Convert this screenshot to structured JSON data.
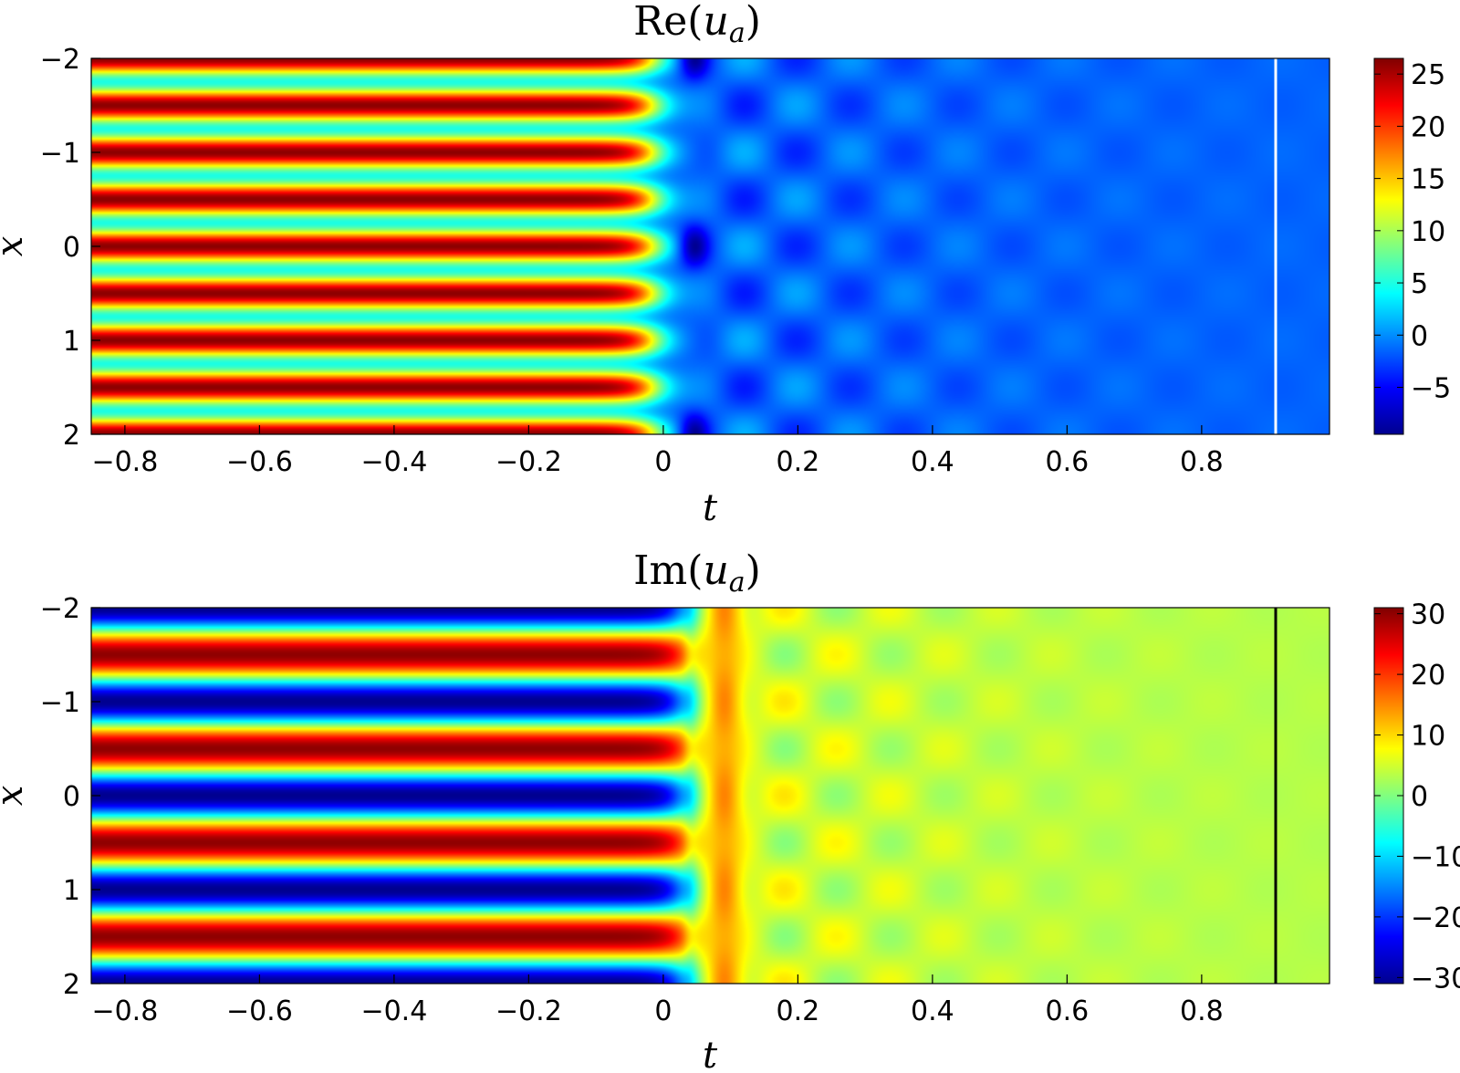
{
  "chart_data": [
    {
      "type": "heatmap",
      "title_main": "Re(",
      "title_var": "u",
      "title_sub": "a",
      "title_close": ")",
      "xlabel": "t",
      "ylabel": "x",
      "xlim": [
        -0.85,
        0.99
      ],
      "ylim": [
        -2,
        2
      ],
      "xticks": [
        -0.8,
        -0.6,
        -0.4,
        -0.2,
        0,
        0.2,
        0.4,
        0.6,
        0.8
      ],
      "xtick_labels": [
        "−0.8",
        "−0.6",
        "−0.4",
        "−0.2",
        "0",
        "0.2",
        "0.4",
        "0.6",
        "0.8"
      ],
      "yticks": [
        -2,
        -1,
        0,
        1,
        2
      ],
      "ytick_labels": [
        "−2",
        "−1",
        "0",
        "1",
        "2"
      ],
      "colorbar": {
        "range": [
          -9.5,
          26.5
        ],
        "ticks": [
          -5,
          0,
          5,
          10,
          15,
          20,
          25
        ],
        "tick_labels": [
          "−5",
          "0",
          "5",
          "10",
          "15",
          "20",
          "25"
        ]
      },
      "colormap": "jet",
      "marker_line": {
        "t": 0.91,
        "color": "#ffffff"
      },
      "field": {
        "description_free": true,
        "before_mean": 15.5,
        "before_amplitude": 10.5,
        "before_period_x": 0.5,
        "after_background": -1.5,
        "dip_value": -9.2,
        "ripple_amplitude": 3.5,
        "transition_t": 0.0
      }
    },
    {
      "type": "heatmap",
      "title_main": "Im(",
      "title_var": "u",
      "title_sub": "a",
      "title_close": ")",
      "xlabel": "t",
      "ylabel": "x",
      "xlim": [
        -0.85,
        0.99
      ],
      "ylim": [
        -2,
        2
      ],
      "xticks": [
        -0.8,
        -0.6,
        -0.4,
        -0.2,
        0,
        0.2,
        0.4,
        0.6,
        0.8
      ],
      "xtick_labels": [
        "−0.8",
        "−0.6",
        "−0.4",
        "−0.2",
        "0",
        "0.2",
        "0.4",
        "0.6",
        "0.8"
      ],
      "yticks": [
        -2,
        -1,
        0,
        1,
        2
      ],
      "ytick_labels": [
        "−2",
        "−1",
        "0",
        "1",
        "2"
      ],
      "colorbar": {
        "range": [
          -31,
          31
        ],
        "ticks": [
          -30,
          -20,
          -10,
          0,
          10,
          20,
          30
        ],
        "tick_labels": [
          "−30",
          "−20",
          "−10",
          "0",
          "10",
          "20",
          "30"
        ]
      },
      "colormap": "jet",
      "marker_line": {
        "t": 0.91,
        "color": "#000000"
      },
      "field": {
        "before_amplitude": 30,
        "before_period_x": 1.0,
        "after_background": 5,
        "peak_value": 17,
        "ripple_amplitude": 6,
        "transition_t": 0.05
      }
    }
  ]
}
